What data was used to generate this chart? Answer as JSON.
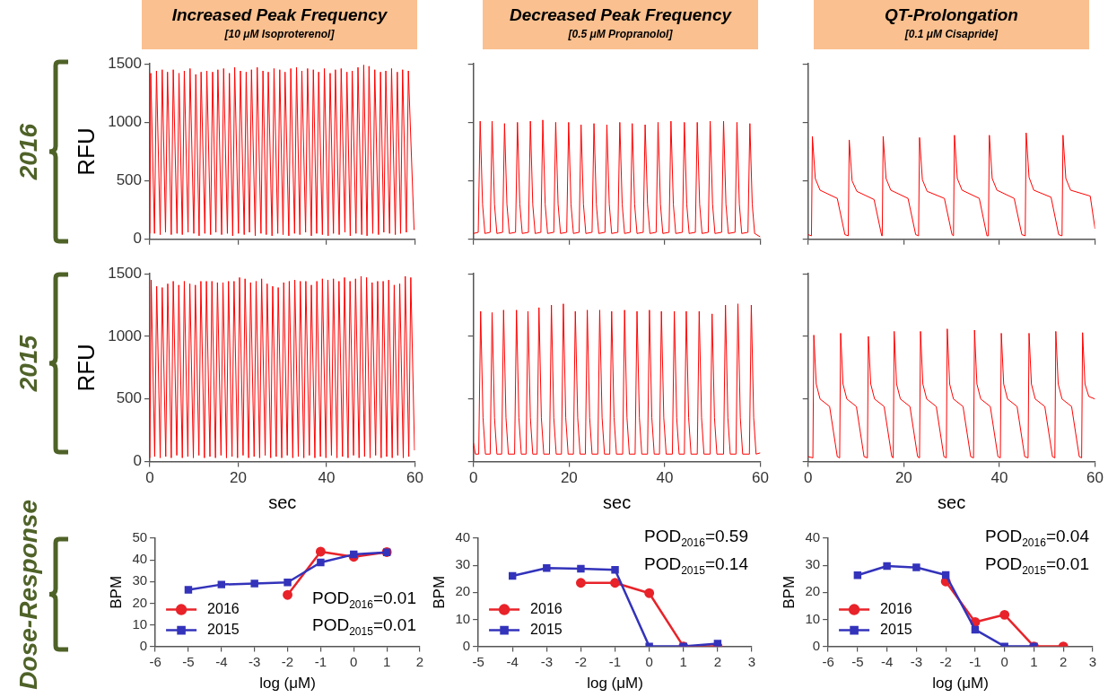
{
  "chart_data": [
    {
      "type": "line",
      "title": "Increased Peak Frequency",
      "subtitle": "[10 μM Isoproterenol]",
      "ylabel": "RFU",
      "annotations": [
        "2016"
      ],
      "xlim": [
        0,
        60
      ],
      "ylim": [
        0,
        1500
      ],
      "xticks": [
        0,
        20,
        40,
        60
      ],
      "yticks": [
        0,
        500,
        1000,
        1500
      ],
      "tick_labels": "y",
      "marker": "none",
      "series": [
        {
          "color": "#ff0000",
          "x": [
            0,
            0.2,
            1.05,
            1.5,
            2.35,
            2.8,
            3.55,
            4.0,
            4.85,
            5.3,
            6.15,
            6.6,
            7.35,
            7.8,
            8.65,
            9.1,
            9.95,
            10.4,
            11.15,
            11.6,
            12.45,
            12.9,
            13.75,
            14.2,
            14.95,
            15.4,
            16.25,
            16.7,
            17.55,
            18.0,
            18.75,
            19.2,
            20.05,
            20.5,
            21.35,
            21.8,
            22.55,
            23.0,
            23.85,
            24.3,
            25.15,
            25.6,
            26.35,
            26.8,
            27.65,
            28.1,
            28.95,
            29.4,
            30.15,
            30.6,
            31.45,
            31.9,
            32.75,
            33.2,
            33.95,
            34.4,
            35.25,
            35.7,
            36.55,
            37.0,
            37.75,
            38.2,
            39.05,
            39.5,
            40.35,
            40.8,
            41.55,
            42.0,
            42.85,
            43.3,
            44.15,
            44.6,
            45.35,
            45.8,
            46.65,
            47.1,
            47.95,
            48.4,
            49.15,
            49.6,
            50.45,
            50.9,
            51.75,
            52.2,
            52.95,
            53.4,
            54.25,
            54.7,
            55.55,
            56.0,
            56.75,
            57.2,
            58.05,
            58.5,
            59.8
          ],
          "values": [
            50,
            1420,
            50,
            1440,
            40,
            1450,
            60,
            1430,
            40,
            1450,
            50,
            1420,
            40,
            1440,
            60,
            1460,
            50,
            1410,
            30,
            1430,
            50,
            1440,
            40,
            1430,
            60,
            1450,
            40,
            1460,
            50,
            1420,
            30,
            1470,
            50,
            1440,
            40,
            1430,
            60,
            1450,
            30,
            1470,
            50,
            1440,
            40,
            1430,
            30,
            1460,
            50,
            1450,
            40,
            1430,
            30,
            1460,
            50,
            1470,
            40,
            1440,
            60,
            1460,
            30,
            1450,
            50,
            1430,
            40,
            1460,
            30,
            1420,
            50,
            1450,
            40,
            1460,
            60,
            1430,
            30,
            1440,
            50,
            1470,
            40,
            1490,
            30,
            1480,
            50,
            1450,
            40,
            1430,
            60,
            1440,
            50,
            1460,
            40,
            1430,
            50,
            1450,
            60,
            1440,
            80
          ]
        }
      ]
    },
    {
      "type": "line",
      "title": "Decreased Peak Frequency",
      "subtitle": "[0.5 μM Propranolol]",
      "xlim": [
        0,
        60
      ],
      "ylim": [
        0,
        1500
      ],
      "xticks": [
        0,
        20,
        40,
        60
      ],
      "yticks": [
        0,
        500,
        1000,
        1500
      ],
      "tick_labels": false,
      "marker": "none",
      "series": [
        {
          "color": "#ff0000",
          "x": [
            0,
            1.0,
            1.4,
            1.9,
            2.4,
            3.5,
            3.9,
            4.4,
            4.9,
            6.1,
            6.5,
            7.0,
            7.5,
            8.8,
            9.2,
            9.7,
            10.2,
            11.5,
            11.9,
            12.4,
            12.9,
            14.1,
            14.5,
            15.0,
            15.5,
            16.8,
            17.2,
            17.7,
            18.2,
            19.5,
            19.9,
            20.4,
            20.9,
            22.1,
            22.5,
            23.0,
            23.5,
            24.8,
            25.2,
            25.7,
            26.2,
            27.5,
            27.9,
            28.4,
            28.9,
            30.2,
            30.6,
            31.1,
            31.6,
            32.8,
            33.2,
            33.7,
            34.2,
            35.5,
            35.9,
            36.4,
            36.9,
            38.2,
            38.6,
            39.1,
            39.6,
            40.9,
            41.3,
            41.8,
            42.3,
            43.7,
            44.1,
            44.6,
            45.1,
            46.4,
            46.8,
            47.3,
            47.8,
            49.1,
            49.5,
            50.0,
            50.5,
            51.9,
            52.3,
            52.8,
            53.3,
            54.7,
            55.1,
            55.6,
            56.1,
            57.4,
            57.8,
            58.3,
            58.8,
            60
          ],
          "values": [
            50,
            60,
            1010,
            300,
            50,
            60,
            1010,
            300,
            50,
            60,
            990,
            300,
            50,
            60,
            1000,
            300,
            50,
            60,
            1010,
            300,
            50,
            60,
            1020,
            300,
            50,
            60,
            1000,
            300,
            50,
            60,
            1000,
            300,
            50,
            60,
            980,
            300,
            50,
            60,
            990,
            300,
            50,
            60,
            980,
            300,
            50,
            60,
            1000,
            300,
            50,
            60,
            990,
            300,
            50,
            60,
            980,
            300,
            50,
            60,
            1000,
            300,
            50,
            60,
            1010,
            300,
            50,
            60,
            1000,
            300,
            50,
            60,
            1000,
            300,
            50,
            60,
            1010,
            300,
            50,
            60,
            1010,
            300,
            50,
            60,
            1000,
            300,
            50,
            60,
            990,
            300,
            50,
            20
          ]
        }
      ]
    },
    {
      "type": "line",
      "title": "QT-Prolongation",
      "subtitle": "[0.1 μM Cisapride]",
      "xlim": [
        0,
        60
      ],
      "ylim": [
        0,
        1500
      ],
      "xticks": [
        0,
        20,
        40,
        60
      ],
      "yticks": [
        0,
        500,
        1000,
        1500
      ],
      "tick_labels": false,
      "marker": "none",
      "series": [
        {
          "color": "#ff0000",
          "x": [
            0,
            0.7,
            0.9,
            1.5,
            2.5,
            6.1,
            7.7,
            8.4,
            8.6,
            9.2,
            10.2,
            13.8,
            15.4,
            15.5,
            15.7,
            16.3,
            17.3,
            20.9,
            22.5,
            23.1,
            23.3,
            23.9,
            24.9,
            28.5,
            30.1,
            30.4,
            30.6,
            31.2,
            32.2,
            35.8,
            37.4,
            37.7,
            37.9,
            38.5,
            39.5,
            43.1,
            44.7,
            45.4,
            45.6,
            46.2,
            47.2,
            50.8,
            52.4,
            53.1,
            53.3,
            53.9,
            54.9,
            59.0,
            60
          ],
          "values": [
            40,
            30,
            880,
            520,
            420,
            350,
            40,
            30,
            850,
            500,
            410,
            340,
            30,
            30,
            880,
            520,
            420,
            350,
            40,
            30,
            870,
            510,
            410,
            350,
            40,
            30,
            890,
            520,
            420,
            350,
            30,
            30,
            890,
            520,
            420,
            350,
            40,
            30,
            910,
            530,
            420,
            360,
            40,
            30,
            890,
            520,
            420,
            370,
            90
          ]
        }
      ]
    },
    {
      "type": "line",
      "xlabel": "sec",
      "ylabel": "RFU",
      "annotations": [
        "2015"
      ],
      "xlim": [
        0,
        60
      ],
      "ylim": [
        0,
        1500
      ],
      "xticks": [
        0,
        20,
        40,
        60
      ],
      "yticks": [
        0,
        500,
        1000,
        1500
      ],
      "marker": "none",
      "series": [
        {
          "color": "#ff0000",
          "x": [
            0,
            0.3,
            1.1,
            1.55,
            2.35,
            2.8,
            3.6,
            4.05,
            4.85,
            5.3,
            6.1,
            6.55,
            7.35,
            7.8,
            8.6,
            9.05,
            9.85,
            10.3,
            11.1,
            11.55,
            12.35,
            12.8,
            13.6,
            14.05,
            14.85,
            15.3,
            16.1,
            16.55,
            17.35,
            17.8,
            18.6,
            19.05,
            19.85,
            20.3,
            21.1,
            21.55,
            22.35,
            22.8,
            23.6,
            24.05,
            24.85,
            25.3,
            26.1,
            26.55,
            27.35,
            27.8,
            28.6,
            29.05,
            29.85,
            30.3,
            31.1,
            31.55,
            32.35,
            32.8,
            33.6,
            34.05,
            34.85,
            35.3,
            36.1,
            36.55,
            37.35,
            37.8,
            38.6,
            39.05,
            39.85,
            40.3,
            41.1,
            41.55,
            42.35,
            42.8,
            43.6,
            44.05,
            44.85,
            45.3,
            46.1,
            46.55,
            47.35,
            47.8,
            48.6,
            49.05,
            49.85,
            50.3,
            51.1,
            51.55,
            52.35,
            52.8,
            53.6,
            54.05,
            54.85,
            55.3,
            56.1,
            56.55,
            57.35,
            57.8,
            58.6,
            59.05,
            59.9
          ],
          "values": [
            30,
            1450,
            40,
            1400,
            30,
            1390,
            40,
            1420,
            30,
            1440,
            50,
            1410,
            30,
            1440,
            40,
            1420,
            30,
            1410,
            50,
            1440,
            30,
            1440,
            40,
            1440,
            30,
            1430,
            50,
            1430,
            30,
            1440,
            40,
            1440,
            30,
            1470,
            50,
            1460,
            30,
            1430,
            40,
            1440,
            30,
            1460,
            50,
            1420,
            30,
            1400,
            40,
            1390,
            30,
            1430,
            50,
            1440,
            30,
            1450,
            40,
            1440,
            30,
            1440,
            50,
            1410,
            30,
            1440,
            40,
            1460,
            30,
            1450,
            50,
            1460,
            30,
            1440,
            40,
            1470,
            30,
            1440,
            50,
            1460,
            30,
            1480,
            40,
            1470,
            30,
            1430,
            50,
            1440,
            30,
            1440,
            40,
            1450,
            30,
            1410,
            50,
            1420,
            30,
            1480,
            40,
            1470,
            90
          ]
        }
      ]
    },
    {
      "type": "line",
      "xlabel": "sec",
      "xlim": [
        0,
        60
      ],
      "ylim": [
        0,
        1500
      ],
      "xticks": [
        0,
        20,
        40,
        60
      ],
      "yticks": [
        0,
        500,
        1000,
        1500
      ],
      "tick_labels": "x",
      "marker": "none",
      "series": [
        {
          "color": "#ff0000",
          "x": [
            0,
            0.4,
            1.1,
            1.5,
            2.0,
            2.5,
            3.5,
            3.9,
            4.4,
            4.9,
            5.9,
            6.3,
            6.8,
            7.3,
            8.6,
            9.0,
            9.5,
            10.0,
            11.0,
            11.4,
            11.9,
            12.4,
            13.3,
            13.7,
            14.2,
            14.7,
            15.9,
            16.3,
            16.8,
            17.3,
            18.4,
            18.8,
            19.3,
            19.8,
            20.9,
            21.3,
            21.8,
            22.3,
            23.4,
            23.8,
            24.3,
            24.8,
            26.0,
            26.4,
            26.9,
            27.4,
            28.5,
            28.9,
            29.4,
            29.9,
            31.2,
            31.6,
            32.1,
            32.6,
            33.8,
            34.2,
            34.7,
            35.2,
            36.4,
            36.8,
            37.3,
            37.8,
            38.9,
            39.3,
            39.8,
            40.3,
            41.6,
            42.0,
            42.5,
            43.0,
            44.1,
            44.5,
            45.0,
            45.5,
            46.8,
            47.2,
            47.7,
            48.2,
            49.5,
            49.9,
            50.4,
            50.9,
            52.3,
            52.7,
            53.2,
            53.7,
            54.9,
            55.3,
            55.8,
            56.3,
            57.7,
            58.1,
            58.6,
            59.1,
            60
          ],
          "values": [
            150,
            60,
            60,
            1200,
            350,
            60,
            60,
            1190,
            350,
            60,
            60,
            1210,
            350,
            60,
            60,
            1210,
            350,
            60,
            60,
            1200,
            350,
            60,
            60,
            1230,
            350,
            60,
            60,
            1250,
            350,
            60,
            60,
            1260,
            350,
            60,
            60,
            1200,
            350,
            60,
            60,
            1210,
            350,
            60,
            60,
            1210,
            350,
            60,
            60,
            1200,
            350,
            60,
            60,
            1210,
            350,
            60,
            60,
            1200,
            350,
            60,
            60,
            1210,
            350,
            60,
            60,
            1200,
            350,
            60,
            60,
            1200,
            350,
            60,
            60,
            1200,
            350,
            60,
            60,
            1200,
            350,
            60,
            60,
            1180,
            350,
            60,
            60,
            1250,
            350,
            60,
            60,
            1260,
            350,
            60,
            60,
            1250,
            350,
            60,
            70
          ]
        }
      ]
    },
    {
      "type": "line",
      "xlabel": "sec",
      "xlim": [
        0,
        60
      ],
      "ylim": [
        0,
        1500
      ],
      "xticks": [
        0,
        20,
        40,
        60
      ],
      "yticks": [
        0,
        500,
        1000,
        1500
      ],
      "tick_labels": "x",
      "marker": "none",
      "series": [
        {
          "color": "#ff0000",
          "x": [
            0,
            1.0,
            1.2,
            1.7,
            2.5,
            4.5,
            6.1,
            6.6,
            6.8,
            7.3,
            8.1,
            10.1,
            11.7,
            12.4,
            12.6,
            13.1,
            13.9,
            15.9,
            17.5,
            17.8,
            18.0,
            18.5,
            19.3,
            21.3,
            22.9,
            23.3,
            23.5,
            24.0,
            24.8,
            26.8,
            28.4,
            28.9,
            29.1,
            29.6,
            30.4,
            32.4,
            34.0,
            34.6,
            34.8,
            35.3,
            36.1,
            38.1,
            39.7,
            40.2,
            40.4,
            40.9,
            41.7,
            43.7,
            45.3,
            46.0,
            46.2,
            46.7,
            47.5,
            49.5,
            51.1,
            51.6,
            51.8,
            52.3,
            53.1,
            55.1,
            56.7,
            57.2,
            57.4,
            57.9,
            58.7,
            60
          ],
          "values": [
            40,
            30,
            1010,
            620,
            500,
            440,
            40,
            30,
            1025,
            620,
            500,
            440,
            40,
            30,
            1000,
            620,
            500,
            440,
            40,
            30,
            1040,
            620,
            500,
            440,
            40,
            30,
            1040,
            620,
            500,
            440,
            40,
            30,
            1060,
            620,
            500,
            440,
            40,
            30,
            1050,
            620,
            500,
            440,
            40,
            30,
            1025,
            620,
            500,
            440,
            40,
            30,
            1025,
            620,
            500,
            440,
            40,
            30,
            1040,
            620,
            500,
            440,
            40,
            30,
            1030,
            620,
            520,
            500
          ]
        }
      ]
    },
    {
      "type": "line",
      "xlabel": "log (μM)",
      "ylabel": "BPM",
      "annotations": [
        "Dose-Response",
        "POD$_{2016}$=0.01",
        "POD$_{2015}$=0.01"
      ],
      "xlim": [
        -6,
        2
      ],
      "ylim": [
        0,
        50
      ],
      "xticks": [
        -6,
        -5,
        -4,
        -3,
        -2,
        -1,
        0,
        1,
        2
      ],
      "yticks": [
        0,
        10,
        20,
        30,
        40,
        50
      ],
      "legend": "bottom left",
      "series": [
        {
          "name": "2016",
          "color": "#e8232a",
          "marker": "circle",
          "x": [
            -2,
            -1,
            0,
            1
          ],
          "values": [
            23.8,
            43.8,
            41.4,
            43.6
          ]
        },
        {
          "name": "2015",
          "color": "#3333bb",
          "marker": "square",
          "x": [
            -5,
            -4,
            -3,
            -2,
            -1,
            0,
            1
          ],
          "values": [
            26.2,
            28.6,
            29.1,
            29.6,
            38.8,
            42.5,
            43.5
          ]
        }
      ]
    },
    {
      "type": "line",
      "xlabel": "log (μM)",
      "ylabel": "BPM",
      "annotations": [
        "POD$_{2016}$=0.59",
        "POD$_{2015}$=0.14"
      ],
      "xlim": [
        -5,
        3
      ],
      "ylim": [
        0,
        40
      ],
      "xticks": [
        -5,
        -4,
        -3,
        -2,
        -1,
        0,
        1,
        2,
        3
      ],
      "yticks": [
        0,
        10,
        20,
        30,
        40
      ],
      "legend": "bottom left",
      "series": [
        {
          "name": "2016",
          "color": "#e8232a",
          "marker": "circle",
          "x": [
            -2,
            -1,
            0,
            1,
            2
          ],
          "values": [
            23.5,
            23.5,
            19.7,
            0,
            0
          ]
        },
        {
          "name": "2015",
          "color": "#3333bb",
          "marker": "square",
          "x": [
            -4,
            -3,
            -2,
            -1,
            0,
            1,
            2
          ],
          "values": [
            26.1,
            29,
            28.7,
            28.3,
            0,
            0,
            1
          ]
        }
      ]
    },
    {
      "type": "line",
      "xlabel": "log (μM)",
      "ylabel": "BPM",
      "annotations": [
        "POD$_{2016}$=0.04",
        "POD$_{2015}$=0.01"
      ],
      "xlim": [
        -6,
        3
      ],
      "ylim": [
        0,
        40
      ],
      "xticks": [
        -6,
        -5,
        -4,
        -3,
        -2,
        -1,
        0,
        1,
        2,
        3
      ],
      "yticks": [
        0,
        10,
        20,
        30,
        40
      ],
      "legend": "bottom left",
      "series": [
        {
          "name": "2016",
          "color": "#e8232a",
          "marker": "circle",
          "x": [
            -2,
            -1,
            0,
            1,
            2
          ],
          "values": [
            24,
            9,
            11.7,
            0,
            0
          ]
        },
        {
          "name": "2015",
          "color": "#3333bb",
          "marker": "square",
          "x": [
            -5,
            -4,
            -3,
            -2,
            -1,
            0,
            1
          ],
          "values": [
            26.3,
            29.7,
            29.2,
            26.4,
            6.2,
            0,
            0
          ]
        }
      ]
    }
  ]
}
